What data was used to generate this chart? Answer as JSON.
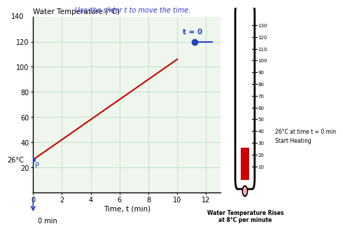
{
  "title": "Water Temperature (°C)",
  "xlabel": "Time, t (min)",
  "xlim": [
    0,
    13
  ],
  "ylim": [
    0,
    140
  ],
  "xticks": [
    0,
    2,
    4,
    6,
    8,
    10,
    12
  ],
  "yticks": [
    20,
    40,
    60,
    80,
    100,
    120
  ],
  "y140_label": "140",
  "line_x": [
    0,
    10
  ],
  "line_y": [
    26,
    106
  ],
  "line_color": "#cc0000",
  "grid_color": "#c8dfc8",
  "bg_color": "#ffffff",
  "plot_bg": "#eef6ee",
  "slider_text": "t = 0",
  "slider_x": 11.2,
  "slider_y": 120,
  "slider_color": "#2244bb",
  "instruction_text": "Use the slider t to move the time.",
  "point_label": "P",
  "point_x": 0,
  "point_y": 26,
  "label_26": "26°C",
  "label_0min": "0 min",
  "thermo_ticks": [
    10,
    20,
    30,
    40,
    50,
    60,
    70,
    80,
    90,
    100,
    110,
    120,
    130
  ],
  "thermo_fill_level": 26,
  "thermo_min": 0,
  "thermo_max": 140,
  "thermo_label1": "26°C at time t = 0 min",
  "thermo_label2": "Start Heating",
  "thermo_bottom_label": "Water Temperature Rises\nat 8°C per minute",
  "title_color": "#000000",
  "instruction_color": "#3333cc",
  "bulb_color": "#ffaaaa",
  "red_fill_color": "#cc0000"
}
